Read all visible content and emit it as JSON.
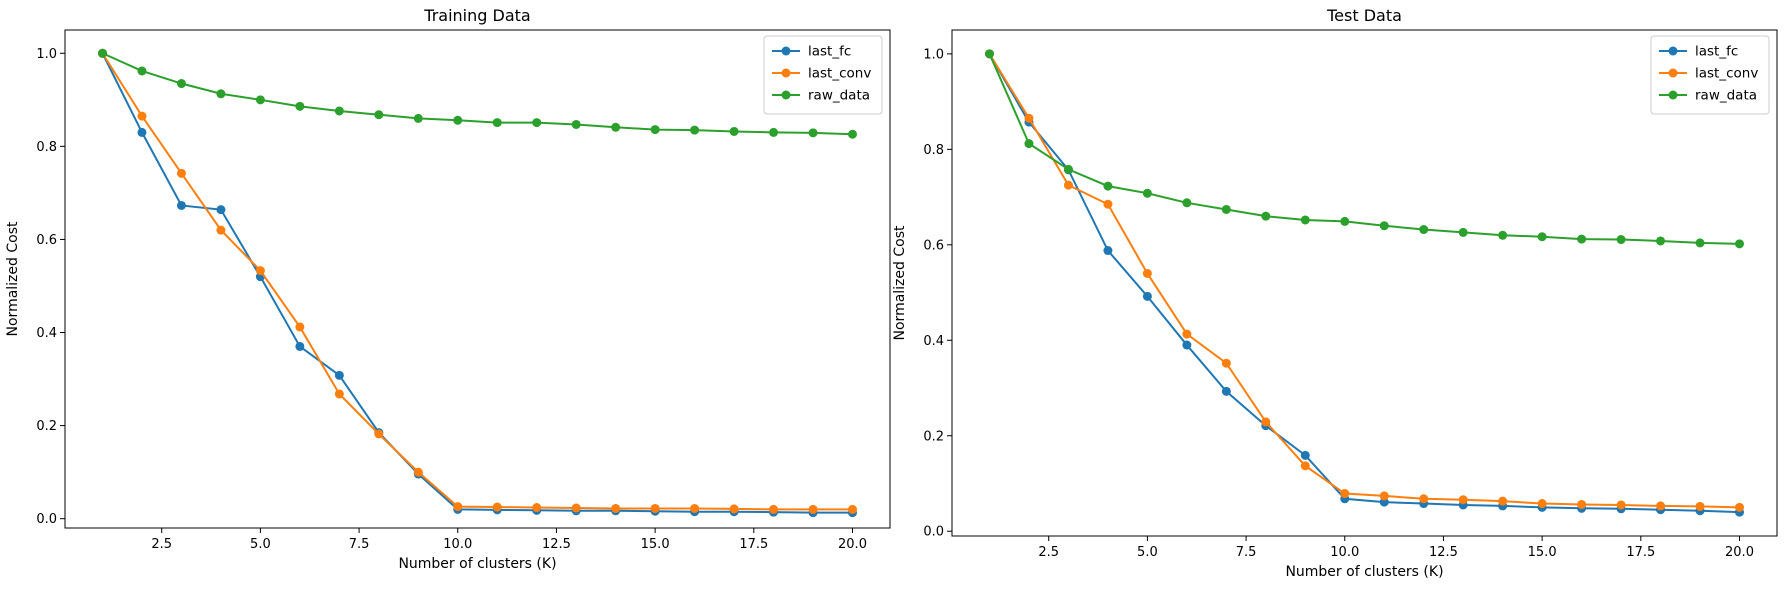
{
  "chart_data": [
    {
      "type": "line",
      "title": "Training Data",
      "xlabel": "Number of clusters (K)",
      "ylabel": "Normalized Cost",
      "xlim": [
        0.05,
        20.95
      ],
      "ylim": [
        -0.02,
        1.05
      ],
      "xticks": [
        "2.5",
        "5.0",
        "7.5",
        "10.0",
        "12.5",
        "15.0",
        "17.5",
        "20.0"
      ],
      "yticks": [
        "0.0",
        "0.2",
        "0.4",
        "0.6",
        "0.8",
        "1.0"
      ],
      "grid": false,
      "legend_position": "top-right",
      "x": [
        1,
        2,
        3,
        4,
        5,
        6,
        7,
        8,
        9,
        10,
        11,
        12,
        13,
        14,
        15,
        16,
        17,
        18,
        19,
        20
      ],
      "series": [
        {
          "name": "last_fc",
          "color": "#1f77b4",
          "values": [
            1.0,
            0.83,
            0.673,
            0.664,
            0.52,
            0.37,
            0.308,
            0.185,
            0.096,
            0.02,
            0.019,
            0.018,
            0.017,
            0.017,
            0.016,
            0.015,
            0.015,
            0.014,
            0.013,
            0.013
          ]
        },
        {
          "name": "last_conv",
          "color": "#ff7f0e",
          "values": [
            1.0,
            0.865,
            0.742,
            0.62,
            0.533,
            0.412,
            0.268,
            0.182,
            0.1,
            0.026,
            0.025,
            0.024,
            0.023,
            0.022,
            0.022,
            0.022,
            0.021,
            0.02,
            0.02,
            0.02
          ]
        },
        {
          "name": "raw_data",
          "color": "#2ca02c",
          "values": [
            1.0,
            0.962,
            0.935,
            0.913,
            0.9,
            0.886,
            0.876,
            0.868,
            0.86,
            0.856,
            0.851,
            0.851,
            0.847,
            0.841,
            0.836,
            0.835,
            0.832,
            0.83,
            0.829,
            0.826
          ]
        }
      ]
    },
    {
      "type": "line",
      "title": "Test Data",
      "xlabel": "Number of clusters (K)",
      "ylabel": "Normalized Cost",
      "xlim": [
        0.05,
        20.95
      ],
      "ylim": [
        -0.01,
        1.05
      ],
      "xticks": [
        "2.5",
        "5.0",
        "7.5",
        "10.0",
        "12.5",
        "15.0",
        "17.5",
        "20.0"
      ],
      "yticks": [
        "0.0",
        "0.2",
        "0.4",
        "0.6",
        "0.8",
        "1.0"
      ],
      "grid": false,
      "legend_position": "top-right",
      "x": [
        1,
        2,
        3,
        4,
        5,
        6,
        7,
        8,
        9,
        10,
        11,
        12,
        13,
        14,
        15,
        16,
        17,
        18,
        19,
        20
      ],
      "series": [
        {
          "name": "last_fc",
          "color": "#1f77b4",
          "values": [
            1.0,
            0.857,
            0.757,
            0.588,
            0.492,
            0.39,
            0.293,
            0.221,
            0.159,
            0.068,
            0.061,
            0.058,
            0.055,
            0.053,
            0.05,
            0.048,
            0.047,
            0.045,
            0.043,
            0.04
          ]
        },
        {
          "name": "last_conv",
          "color": "#ff7f0e",
          "values": [
            1.0,
            0.865,
            0.725,
            0.685,
            0.54,
            0.413,
            0.352,
            0.229,
            0.137,
            0.079,
            0.074,
            0.068,
            0.066,
            0.063,
            0.058,
            0.056,
            0.055,
            0.053,
            0.052,
            0.05
          ]
        },
        {
          "name": "raw_data",
          "color": "#2ca02c",
          "values": [
            1.0,
            0.812,
            0.758,
            0.723,
            0.708,
            0.688,
            0.674,
            0.66,
            0.652,
            0.649,
            0.64,
            0.632,
            0.626,
            0.62,
            0.617,
            0.612,
            0.611,
            0.608,
            0.604,
            0.602
          ]
        }
      ]
    }
  ]
}
